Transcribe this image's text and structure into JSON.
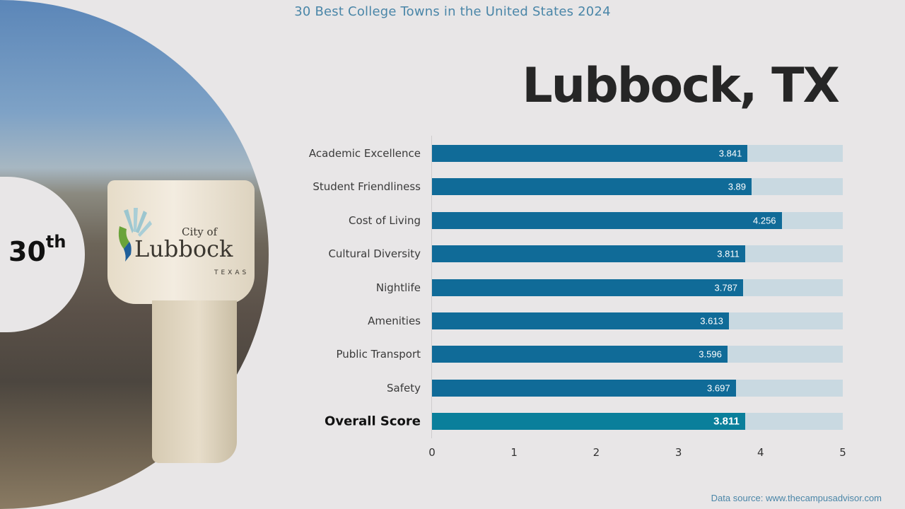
{
  "header": {
    "title": "30 Best College Towns in the United States 2024"
  },
  "city": {
    "name": "Lubbock, TX"
  },
  "rank": {
    "number": "30",
    "suffix": "th"
  },
  "photo": {
    "sign_small": "City of",
    "sign_big": "Lubbock",
    "sign_state": "TEXAS",
    "icon": "water-tower-photo"
  },
  "colors": {
    "bar": "#106b98",
    "overall_bar": "#0a7f9b",
    "bar_background": "#c9d9e1",
    "title": "#4a86a8",
    "page_background": "#e8e6e7"
  },
  "chart_data": {
    "type": "bar",
    "orientation": "horizontal",
    "title": "30 Best College Towns in the United States 2024",
    "subtitle": "Lubbock, TX",
    "categories": [
      "Academic Excellence",
      "Student Friendliness",
      "Cost of Living",
      "Cultural Diversity",
      "Nightlife",
      "Amenities",
      "Public Transport",
      "Safety",
      "Overall Score"
    ],
    "values": [
      3.841,
      3.89,
      4.256,
      3.811,
      3.787,
      3.613,
      3.596,
      3.697,
      3.811
    ],
    "value_labels": [
      "3.841",
      "3.89",
      "4.256",
      "3.811",
      "3.787",
      "3.613",
      "3.596",
      "3.697",
      "3.811"
    ],
    "highlight_category": "Overall Score",
    "xlim": [
      0,
      5
    ],
    "xticks": [
      "0",
      "1",
      "2",
      "3",
      "4",
      "5"
    ],
    "xlabel": "",
    "ylabel": "",
    "grid": false,
    "legend": "none"
  },
  "footer": {
    "source": "Data source: www.thecampusadvisor.com"
  }
}
